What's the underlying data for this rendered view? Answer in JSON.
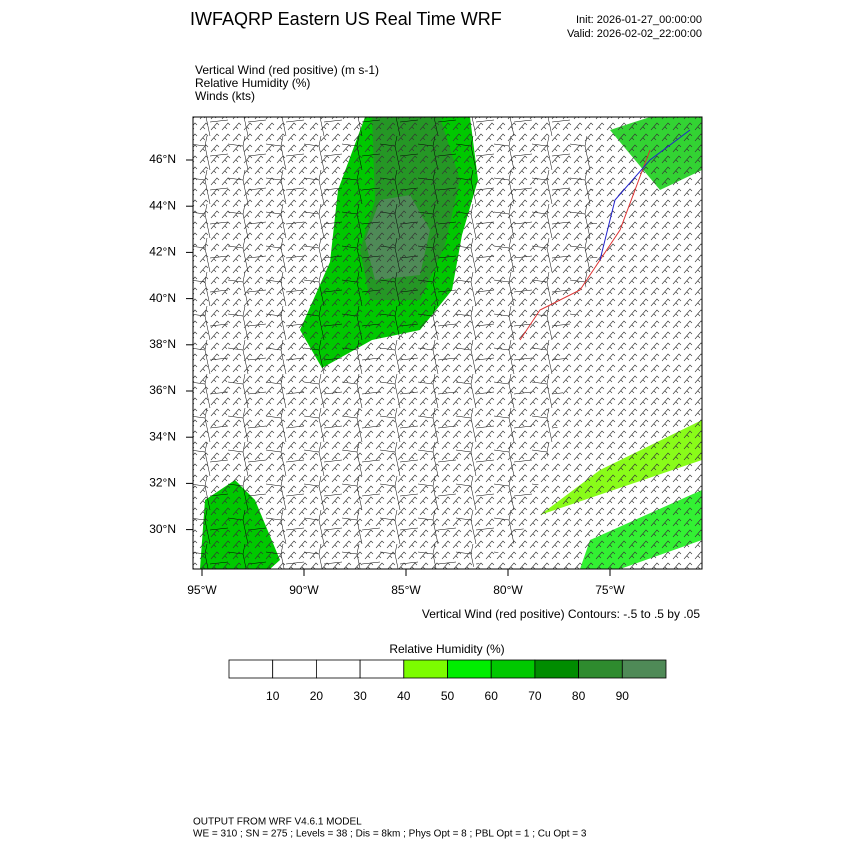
{
  "header": {
    "title": "IWFAQRP Eastern US Real Time WRF",
    "init": "Init: 2026-01-27_00:00:00",
    "valid": "Valid: 2026-02-02_22:00:00"
  },
  "fields": [
    "Vertical Wind (red positive)   (m s-1)",
    "Relative Humidity   (%)",
    "Winds   (kts)"
  ],
  "map": {
    "lat_labels": [
      "46°N",
      "44°N",
      "42°N",
      "40°N",
      "38°N",
      "36°N",
      "34°N",
      "32°N",
      "30°N"
    ],
    "lon_labels": [
      "95°W",
      "90°W",
      "85°W",
      "80°W",
      "75°W"
    ],
    "contour_caption": "Vertical Wind (red positive) Contours: -.5 to .5 by .05"
  },
  "colorbar": {
    "title": "Relative Humidity  (%)",
    "ticks": [
      10,
      20,
      30,
      40,
      50,
      60,
      70,
      80,
      90
    ],
    "colors": [
      "#ffffff",
      "#ffffff",
      "#ffffff",
      "#ffffff",
      "#7cfc00",
      "#00ee00",
      "#00c800",
      "#008c00",
      "#2e8b2e",
      "#4f8a57"
    ]
  },
  "footer": [
    "OUTPUT FROM WRF V4.6.1 MODEL",
    "WE = 310 ; SN = 275 ; Levels = 38 ; Dis = 8km ; Phys Opt = 8 ; PBL Opt = 1 ; Cu Opt = 3"
  ]
}
